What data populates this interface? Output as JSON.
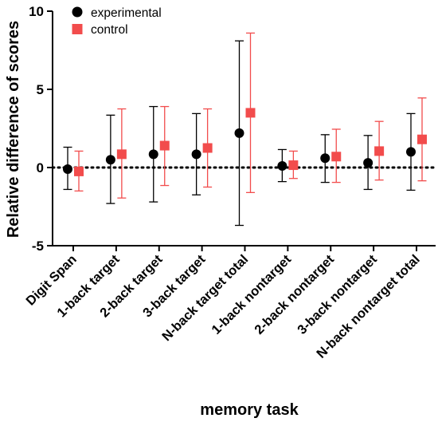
{
  "chart_data": {
    "type": "scatter",
    "title": "",
    "xlabel": "memory task",
    "ylabel": "Relative difference of scores",
    "ylim": [
      -5,
      10
    ],
    "yticks": [
      -5,
      0,
      5,
      10
    ],
    "reference_line": {
      "y": 0,
      "style": "dotted"
    },
    "legend": {
      "placement": "top-left"
    },
    "categories": [
      "Digit Span",
      "1-back target",
      "2-back target",
      "3-back target",
      "N-back target total",
      "1-back nontarget",
      "2-back nontarget",
      "3-back nontarget",
      "N-back nontarget total"
    ],
    "series": [
      {
        "name": "experimental",
        "marker": "circle",
        "color": "#000000",
        "values": [
          -0.1,
          0.5,
          0.85,
          0.85,
          2.2,
          0.1,
          0.6,
          0.3,
          1.0
        ],
        "err_low": [
          -1.4,
          -2.3,
          -2.2,
          -1.75,
          -3.7,
          -0.9,
          -0.95,
          -1.4,
          -1.45
        ],
        "err_high": [
          1.3,
          3.35,
          3.9,
          3.45,
          8.1,
          1.15,
          2.1,
          2.05,
          3.45
        ]
      },
      {
        "name": "control",
        "marker": "square",
        "color": "#f24c4c",
        "values": [
          -0.25,
          0.85,
          1.4,
          1.25,
          3.5,
          0.15,
          0.7,
          1.05,
          1.8
        ],
        "err_low": [
          -1.5,
          -1.95,
          -1.15,
          -1.25,
          -1.6,
          -0.7,
          -0.95,
          -0.8,
          -0.85
        ],
        "err_high": [
          1.05,
          3.75,
          3.9,
          3.75,
          8.6,
          1.05,
          2.45,
          2.95,
          4.45
        ]
      }
    ]
  }
}
